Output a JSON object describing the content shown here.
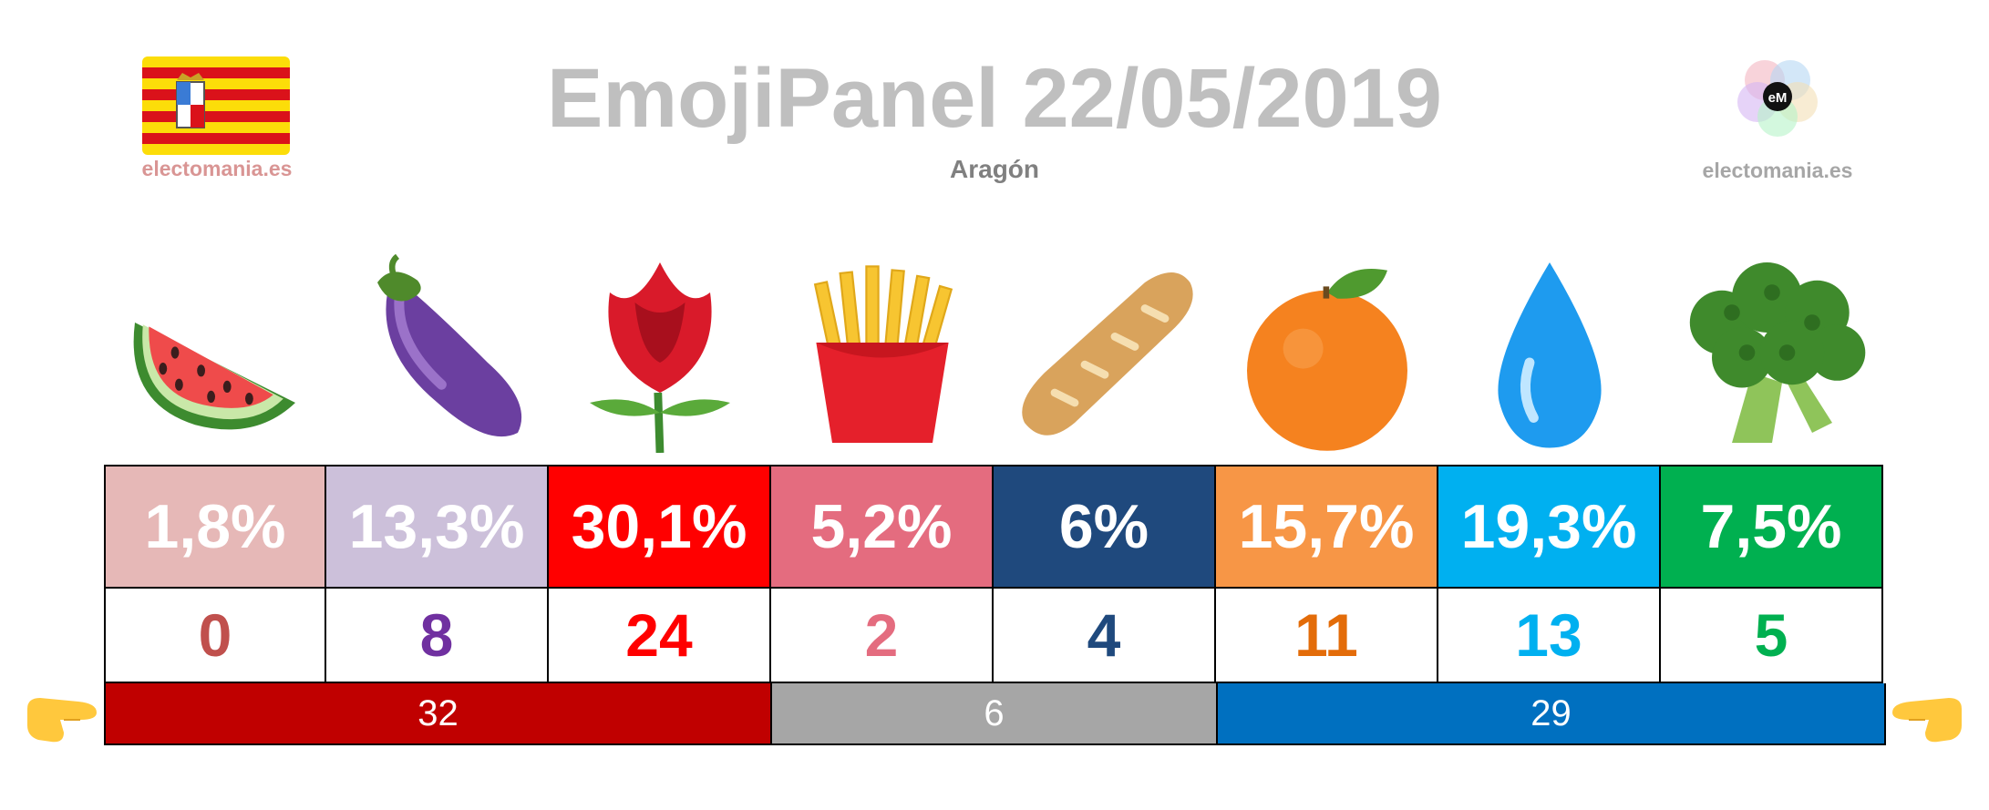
{
  "header": {
    "title": "EmojiPanel 22/05/2019",
    "subtitle": "Aragón",
    "flag_label": "electomania.es",
    "logo_label": "electomania.es",
    "logo_text": "eM"
  },
  "chart_data": {
    "type": "table",
    "title": "EmojiPanel 22/05/2019",
    "subtitle": "Aragón",
    "columns": [
      {
        "icon": "watermelon-icon",
        "pct": "1,8%",
        "seats": "0",
        "bg": "#e6b8b7",
        "seat_color": "#c0504d"
      },
      {
        "icon": "eggplant-icon",
        "pct": "13,3%",
        "seats": "8",
        "bg": "#ccc0da",
        "seat_color": "#7030a0"
      },
      {
        "icon": "rose-icon",
        "pct": "30,1%",
        "seats": "24",
        "bg": "#ff0000",
        "seat_color": "#ff0000"
      },
      {
        "icon": "fries-icon",
        "pct": "5,2%",
        "seats": "2",
        "bg": "#e46c7f",
        "seat_color": "#e46c7f"
      },
      {
        "icon": "baguette-icon",
        "pct": "6%",
        "seats": "4",
        "bg": "#1f497d",
        "seat_color": "#1f497d"
      },
      {
        "icon": "orange-icon",
        "pct": "15,7%",
        "seats": "11",
        "bg": "#f79646",
        "seat_color": "#e36c09"
      },
      {
        "icon": "droplet-icon",
        "pct": "19,3%",
        "seats": "13",
        "bg": "#00b0f0",
        "seat_color": "#00b0f0"
      },
      {
        "icon": "broccoli-icon",
        "pct": "7,5%",
        "seats": "5",
        "bg": "#00b050",
        "seat_color": "#00b050"
      }
    ],
    "blocs": [
      {
        "value": "32",
        "span": 3,
        "bg": "#c00000"
      },
      {
        "value": "6",
        "span": 2,
        "bg": "#a6a6a6"
      },
      {
        "value": "29",
        "span": 3,
        "bg": "#0070c0"
      }
    ]
  },
  "pointers": {
    "left": "backhand-index-pointing-right-icon",
    "right": "backhand-index-pointing-left-icon"
  }
}
